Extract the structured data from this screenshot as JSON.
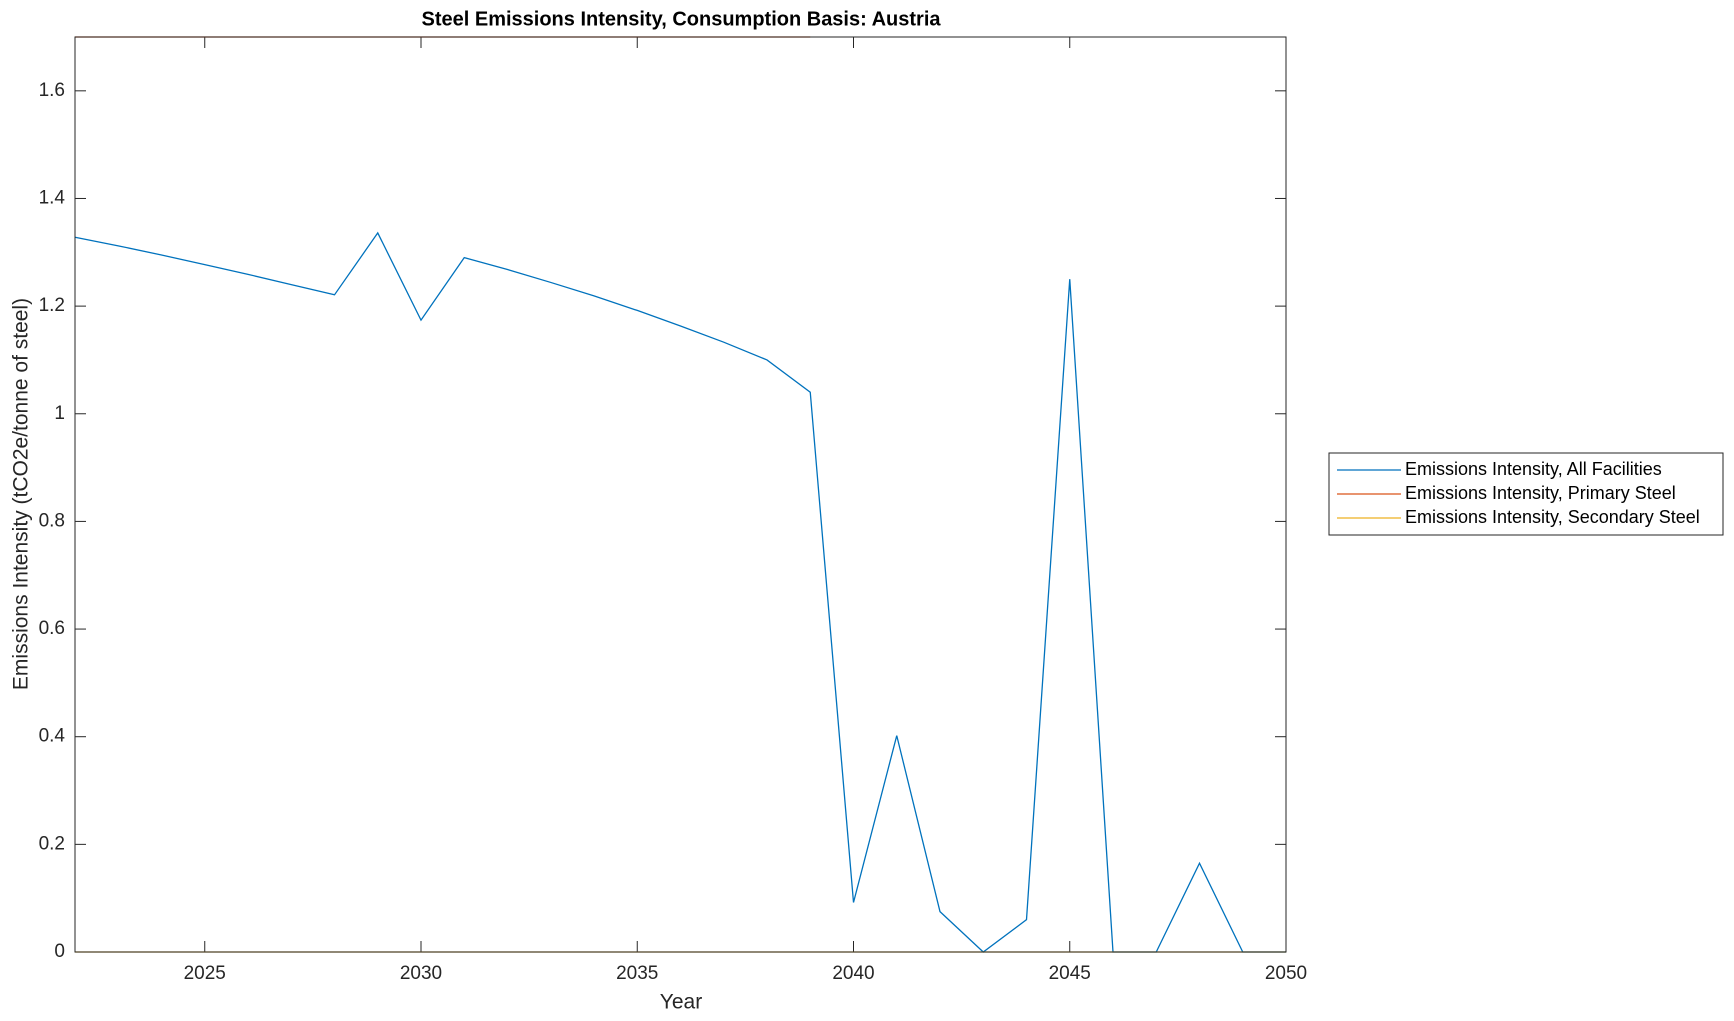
{
  "chart_data": {
    "type": "line",
    "title": "Steel Emissions Intensity, Consumption Basis: Austria",
    "xlabel": "Year",
    "ylabel": "Emissions Intensity (tCO2e/tonne of steel)",
    "x": [
      2022,
      2023,
      2024,
      2025,
      2026,
      2027,
      2028,
      2029,
      2030,
      2031,
      2032,
      2033,
      2034,
      2035,
      2036,
      2037,
      2038,
      2039,
      2040,
      2041,
      2042,
      2043,
      2044,
      2045,
      2046,
      2047,
      2048,
      2049,
      2050
    ],
    "series": [
      {
        "name": "Emissions Intensity, All Facilities",
        "color": "#0072bd",
        "values": [
          1.328,
          1.312,
          1.295,
          1.277,
          1.259,
          1.24,
          1.221,
          1.336,
          1.174,
          1.29,
          1.268,
          1.244,
          1.219,
          1.192,
          1.163,
          1.133,
          1.1,
          1.04,
          0.092,
          0.402,
          0.075,
          0,
          0.06,
          1.25,
          0,
          0,
          0.165,
          0,
          0
        ]
      },
      {
        "name": "Emissions Intensity, Primary Steel",
        "color": "#d95319",
        "values": [
          1.7,
          1.7,
          1.7,
          1.7,
          1.7,
          1.7,
          1.7,
          1.7,
          1.7,
          1.7,
          1.7,
          1.7,
          1.7,
          1.7,
          1.7,
          1.7,
          1.7,
          1.7,
          null,
          null,
          null,
          null,
          null,
          null,
          null,
          null,
          null,
          null,
          null
        ]
      },
      {
        "name": "Emissions Intensity, Secondary Steel",
        "color": "#edb120",
        "values": [
          0,
          0,
          0,
          0,
          0,
          0,
          0,
          0,
          0,
          0,
          0,
          0,
          0,
          0,
          0,
          0,
          0,
          0,
          0,
          0,
          0,
          0,
          0,
          0,
          0,
          0,
          0,
          0,
          0
        ]
      }
    ],
    "xlim": [
      2022,
      2050
    ],
    "xticks": [
      2025,
      2030,
      2035,
      2040,
      2045,
      2050
    ],
    "ylim": [
      0,
      1.7
    ],
    "yticks": [
      0,
      0.2,
      0.4,
      0.6,
      0.8,
      1,
      1.2,
      1.4,
      1.6
    ],
    "legend": "outside-right"
  }
}
